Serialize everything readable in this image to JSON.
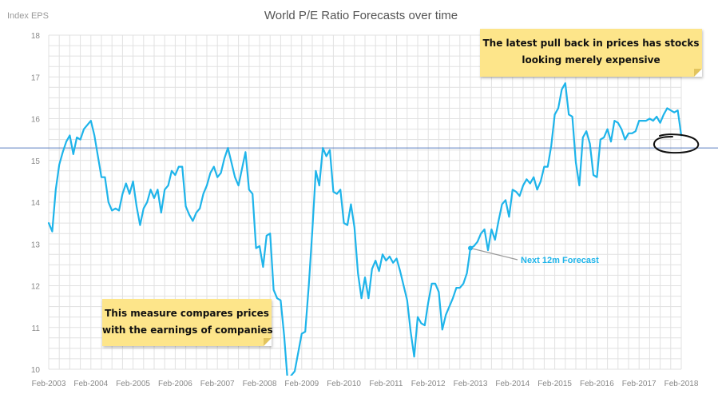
{
  "chart_data": {
    "type": "line",
    "title": "World P/E Ratio Forecasts over time",
    "corner_label": "Index EPS",
    "ylim": [
      10,
      18
    ],
    "y_ticks": [
      10,
      11,
      12,
      13,
      14,
      15,
      16,
      17,
      18
    ],
    "x_range": [
      "2003-02",
      "2018-02"
    ],
    "x_tick_labels": [
      "Feb-2003",
      "Feb-2004",
      "Feb-2005",
      "Feb-2006",
      "Feb-2007",
      "Feb-2008",
      "Feb-2009",
      "Feb-2010",
      "Feb-2011",
      "Feb-2012",
      "Feb-2013",
      "Feb-2014",
      "Feb-2015",
      "Feb-2016",
      "Feb-2017",
      "Feb-2018"
    ],
    "grid": true,
    "reference_line": {
      "y": 15.3,
      "color": "#5b7fc0"
    },
    "series": [
      {
        "name": "Next 12m Forecast",
        "color": "#1eb4ea",
        "points": [
          [
            "2003-02",
            13.5
          ],
          [
            "2003-03",
            13.3
          ],
          [
            "2003-04",
            14.3
          ],
          [
            "2003-05",
            14.9
          ],
          [
            "2003-06",
            15.2
          ],
          [
            "2003-07",
            15.45
          ],
          [
            "2003-08",
            15.6
          ],
          [
            "2003-09",
            15.15
          ],
          [
            "2003-10",
            15.55
          ],
          [
            "2003-11",
            15.5
          ],
          [
            "2003-12",
            15.75
          ],
          [
            "2004-01",
            15.85
          ],
          [
            "2004-02",
            15.95
          ],
          [
            "2004-03",
            15.6
          ],
          [
            "2004-04",
            15.1
          ],
          [
            "2004-05",
            14.6
          ],
          [
            "2004-06",
            14.6
          ],
          [
            "2004-07",
            14.0
          ],
          [
            "2004-08",
            13.8
          ],
          [
            "2004-09",
            13.85
          ],
          [
            "2004-10",
            13.8
          ],
          [
            "2004-11",
            14.2
          ],
          [
            "2004-12",
            14.45
          ],
          [
            "2005-01",
            14.2
          ],
          [
            "2005-02",
            14.5
          ],
          [
            "2005-03",
            13.9
          ],
          [
            "2005-04",
            13.45
          ],
          [
            "2005-05",
            13.85
          ],
          [
            "2005-06",
            14.0
          ],
          [
            "2005-07",
            14.3
          ],
          [
            "2005-08",
            14.1
          ],
          [
            "2005-09",
            14.3
          ],
          [
            "2005-10",
            13.75
          ],
          [
            "2005-11",
            14.3
          ],
          [
            "2005-12",
            14.4
          ],
          [
            "2006-01",
            14.75
          ],
          [
            "2006-02",
            14.65
          ],
          [
            "2006-03",
            14.85
          ],
          [
            "2006-04",
            14.85
          ],
          [
            "2006-05",
            13.9
          ],
          [
            "2006-06",
            13.7
          ],
          [
            "2006-07",
            13.55
          ],
          [
            "2006-08",
            13.75
          ],
          [
            "2006-09",
            13.85
          ],
          [
            "2006-10",
            14.2
          ],
          [
            "2006-11",
            14.4
          ],
          [
            "2006-12",
            14.7
          ],
          [
            "2007-01",
            14.85
          ],
          [
            "2007-02",
            14.6
          ],
          [
            "2007-03",
            14.7
          ],
          [
            "2007-04",
            15.05
          ],
          [
            "2007-05",
            15.3
          ],
          [
            "2007-06",
            14.95
          ],
          [
            "2007-07",
            14.6
          ],
          [
            "2007-08",
            14.4
          ],
          [
            "2007-09",
            14.8
          ],
          [
            "2007-10",
            15.2
          ],
          [
            "2007-11",
            14.3
          ],
          [
            "2007-12",
            14.2
          ],
          [
            "2008-01",
            12.9
          ],
          [
            "2008-02",
            12.95
          ],
          [
            "2008-03",
            12.45
          ],
          [
            "2008-04",
            13.2
          ],
          [
            "2008-05",
            13.25
          ],
          [
            "2008-06",
            11.9
          ],
          [
            "2008-07",
            11.7
          ],
          [
            "2008-08",
            11.65
          ],
          [
            "2008-09",
            10.8
          ],
          [
            "2008-10",
            9.7
          ],
          [
            "2008-11",
            9.85
          ],
          [
            "2008-12",
            9.95
          ],
          [
            "2009-01",
            10.4
          ],
          [
            "2009-02",
            10.85
          ],
          [
            "2009-03",
            10.9
          ],
          [
            "2009-04",
            12.0
          ],
          [
            "2009-05",
            13.3
          ],
          [
            "2009-06",
            14.75
          ],
          [
            "2009-07",
            14.4
          ],
          [
            "2009-08",
            15.3
          ],
          [
            "2009-09",
            15.1
          ],
          [
            "2009-10",
            15.25
          ],
          [
            "2009-11",
            14.25
          ],
          [
            "2009-12",
            14.2
          ],
          [
            "2010-01",
            14.3
          ],
          [
            "2010-02",
            13.5
          ],
          [
            "2010-03",
            13.45
          ],
          [
            "2010-04",
            13.95
          ],
          [
            "2010-05",
            13.4
          ],
          [
            "2010-06",
            12.3
          ],
          [
            "2010-07",
            11.7
          ],
          [
            "2010-08",
            12.2
          ],
          [
            "2010-09",
            11.7
          ],
          [
            "2010-10",
            12.4
          ],
          [
            "2010-11",
            12.6
          ],
          [
            "2010-12",
            12.35
          ],
          [
            "2011-01",
            12.75
          ],
          [
            "2011-02",
            12.6
          ],
          [
            "2011-03",
            12.7
          ],
          [
            "2011-04",
            12.55
          ],
          [
            "2011-05",
            12.65
          ],
          [
            "2011-06",
            12.35
          ],
          [
            "2011-07",
            12.0
          ],
          [
            "2011-08",
            11.65
          ],
          [
            "2011-09",
            10.9
          ],
          [
            "2011-10",
            10.3
          ],
          [
            "2011-11",
            11.25
          ],
          [
            "2011-12",
            11.1
          ],
          [
            "2012-01",
            11.05
          ],
          [
            "2012-02",
            11.6
          ],
          [
            "2012-03",
            12.05
          ],
          [
            "2012-04",
            12.05
          ],
          [
            "2012-05",
            11.85
          ],
          [
            "2012-06",
            10.95
          ],
          [
            "2012-07",
            11.3
          ],
          [
            "2012-08",
            11.5
          ],
          [
            "2012-09",
            11.7
          ],
          [
            "2012-10",
            11.95
          ],
          [
            "2012-11",
            11.95
          ],
          [
            "2012-12",
            12.05
          ],
          [
            "2013-01",
            12.3
          ],
          [
            "2013-02",
            12.9
          ],
          [
            "2013-03",
            12.95
          ],
          [
            "2013-04",
            13.05
          ],
          [
            "2013-05",
            13.25
          ],
          [
            "2013-06",
            13.35
          ],
          [
            "2013-07",
            12.85
          ],
          [
            "2013-08",
            13.35
          ],
          [
            "2013-09",
            13.1
          ],
          [
            "2013-10",
            13.55
          ],
          [
            "2013-11",
            13.95
          ],
          [
            "2013-12",
            14.05
          ],
          [
            "2014-01",
            13.65
          ],
          [
            "2014-02",
            14.3
          ],
          [
            "2014-03",
            14.25
          ],
          [
            "2014-04",
            14.15
          ],
          [
            "2014-05",
            14.4
          ],
          [
            "2014-06",
            14.55
          ],
          [
            "2014-07",
            14.45
          ],
          [
            "2014-08",
            14.6
          ],
          [
            "2014-09",
            14.3
          ],
          [
            "2014-10",
            14.5
          ],
          [
            "2014-11",
            14.85
          ],
          [
            "2014-12",
            14.85
          ],
          [
            "2015-01",
            15.35
          ],
          [
            "2015-02",
            16.1
          ],
          [
            "2015-03",
            16.25
          ],
          [
            "2015-04",
            16.7
          ],
          [
            "2015-05",
            16.85
          ],
          [
            "2015-06",
            16.1
          ],
          [
            "2015-07",
            16.05
          ],
          [
            "2015-08",
            14.95
          ],
          [
            "2015-09",
            14.4
          ],
          [
            "2015-10",
            15.55
          ],
          [
            "2015-11",
            15.7
          ],
          [
            "2015-12",
            15.4
          ],
          [
            "2016-01",
            14.65
          ],
          [
            "2016-02",
            14.6
          ],
          [
            "2016-03",
            15.5
          ],
          [
            "2016-04",
            15.55
          ],
          [
            "2016-05",
            15.75
          ],
          [
            "2016-06",
            15.45
          ],
          [
            "2016-07",
            15.95
          ],
          [
            "2016-08",
            15.9
          ],
          [
            "2016-09",
            15.75
          ],
          [
            "2016-10",
            15.5
          ],
          [
            "2016-11",
            15.65
          ],
          [
            "2016-12",
            15.65
          ],
          [
            "2017-01",
            15.7
          ],
          [
            "2017-02",
            15.95
          ],
          [
            "2017-03",
            15.95
          ],
          [
            "2017-04",
            15.95
          ],
          [
            "2017-05",
            16.0
          ],
          [
            "2017-06",
            15.95
          ],
          [
            "2017-07",
            16.05
          ],
          [
            "2017-08",
            15.9
          ],
          [
            "2017-09",
            16.1
          ],
          [
            "2017-10",
            16.25
          ],
          [
            "2017-11",
            16.2
          ],
          [
            "2017-12",
            16.15
          ],
          [
            "2018-01",
            16.2
          ],
          [
            "2018-02",
            15.6
          ]
        ]
      }
    ],
    "annotations": {
      "callout_label": "Next 12m Forecast",
      "callout_point": [
        "2013-02",
        12.9
      ],
      "note_top": [
        "The latest pull back in prices has stocks",
        "looking merely expensive"
      ],
      "note_bottom": [
        "This measure compares prices",
        "with the earnings of companies"
      ]
    }
  }
}
